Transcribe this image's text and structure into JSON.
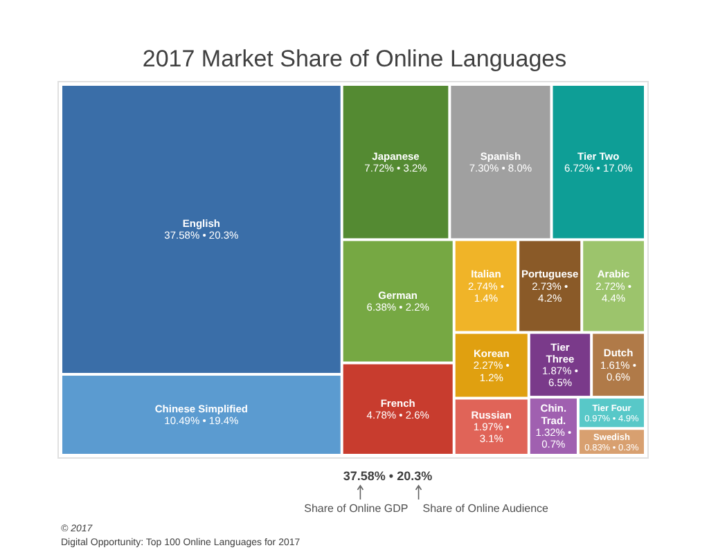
{
  "chart_data": {
    "type": "other",
    "title": "2017 Market Share of Online Languages",
    "categories": [
      "English",
      "Chinese Simplified",
      "Japanese",
      "Spanish",
      "Tier Two",
      "German",
      "French",
      "Italian",
      "Portuguese",
      "Arabic",
      "Korean",
      "Russian",
      "Tier Three",
      "Dutch",
      "Chin. Trad.",
      "Tier Four",
      "Swedish"
    ],
    "colors": [
      "#3a6ea8",
      "#5b9bd0",
      "#548a32",
      "#a0a0a0",
      "#0e9e96",
      "#76a843",
      "#c83c2e",
      "#f0b428",
      "#8a5a28",
      "#9cc46c",
      "#e0a010",
      "#e06458",
      "#7a3a8a",
      "#b07a48",
      "#a060b0",
      "#58c8c8",
      "#d8a070"
    ],
    "values": [
      37.58,
      10.49,
      7.72,
      7.3,
      6.72,
      6.38,
      4.78,
      2.74,
      2.73,
      2.72,
      2.27,
      1.97,
      1.87,
      1.61,
      1.32,
      0.97,
      0.83
    ],
    "value_labels": [
      "37.58% • 20.3%",
      "10.49% • 19.4%",
      "7.72% • 3.2%",
      "7.30% • 8.0%",
      "6.72% • 17.0%",
      "6.38% • 2.2%",
      "4.78% • 2.6%",
      "2.74% • 1.4%",
      "2.73% • 4.2%",
      "2.72% • 4.4%",
      "2.27% • 1.2%",
      "1.97% • 3.1%",
      "1.87% • 6.5%",
      "1.61% • 0.6%",
      "1.32% • 0.7%",
      "0.97% • 4.9%",
      "0.83% • 0.3%"
    ],
    "annotations": [
      "37.58% • 20.3%",
      "Share of Online GDP",
      "Share of Online Audience",
      "© 2017",
      "Digital Opportunity: Top 100 Online Languages for 2017"
    ]
  }
}
